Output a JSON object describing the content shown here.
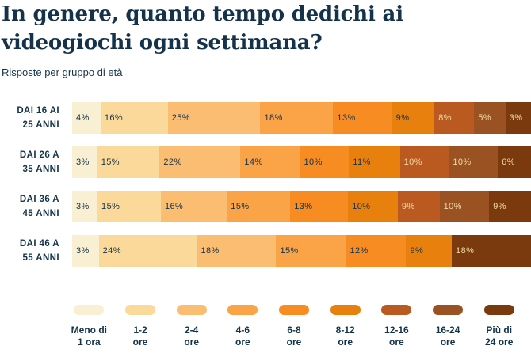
{
  "header": {
    "title_line1": "In genere, quanto tempo dedichi ai",
    "title_line2": "videogiochi ogni settimana?",
    "subtitle": "Risposte per gruppo di età"
  },
  "colors": {
    "navy_text": "#14334A",
    "cream_text": "#F0DBA4",
    "background": "#FFFFFF",
    "palette": [
      "#F9EFD2",
      "#FBD99B",
      "#FBBD71",
      "#FAA347",
      "#F78C22",
      "#E8800E",
      "#BB5A20",
      "#9A5222",
      "#7B3A0E"
    ]
  },
  "chart_data": {
    "type": "bar",
    "variant": "horizontal-stacked",
    "unit": "%",
    "title": "In genere, quanto tempo dedichi ai videogiochi ogni settimana?",
    "subtitle": "Risposte per gruppo di età",
    "legend_position": "bottom",
    "value_labels": "inside-start",
    "categories": [
      "Meno di 1 ora",
      "1-2 ore",
      "2-4 ore",
      "4-6 ore",
      "6-8 ore",
      "8-12 ore",
      "12-16 ore",
      "16-24 ore",
      "Più di 24 ore"
    ],
    "groups": [
      {
        "label_line1": "DAI 16 AI",
        "label_line2": "25 ANNI",
        "values": [
          4,
          16,
          25,
          18,
          13,
          9,
          8,
          5,
          3
        ]
      },
      {
        "label_line1": "DAI 26 A",
        "label_line2": "35 ANNI",
        "values": [
          3,
          15,
          22,
          14,
          10,
          11,
          10,
          10,
          6
        ]
      },
      {
        "label_line1": "DAI 36 A",
        "label_line2": "45 ANNI",
        "values": [
          3,
          15,
          16,
          15,
          13,
          10,
          9,
          10,
          9
        ]
      },
      {
        "label_line1": "DAI 46 A",
        "label_line2": "55 ANNI",
        "values": [
          3,
          24,
          18,
          15,
          12,
          9,
          0,
          0,
          18
        ]
      }
    ],
    "legend": [
      {
        "line1": "Meno di",
        "line2": "1 ora"
      },
      {
        "line1": "1-2",
        "line2": "ore"
      },
      {
        "line1": "2-4",
        "line2": "ore"
      },
      {
        "line1": "4-6",
        "line2": "ore"
      },
      {
        "line1": "6-8",
        "line2": "ore"
      },
      {
        "line1": "8-12",
        "line2": "ore"
      },
      {
        "line1": "12-16",
        "line2": "ore"
      },
      {
        "line1": "16-24",
        "line2": "ore"
      },
      {
        "line1": "Più di",
        "line2": "24 ore"
      }
    ]
  }
}
